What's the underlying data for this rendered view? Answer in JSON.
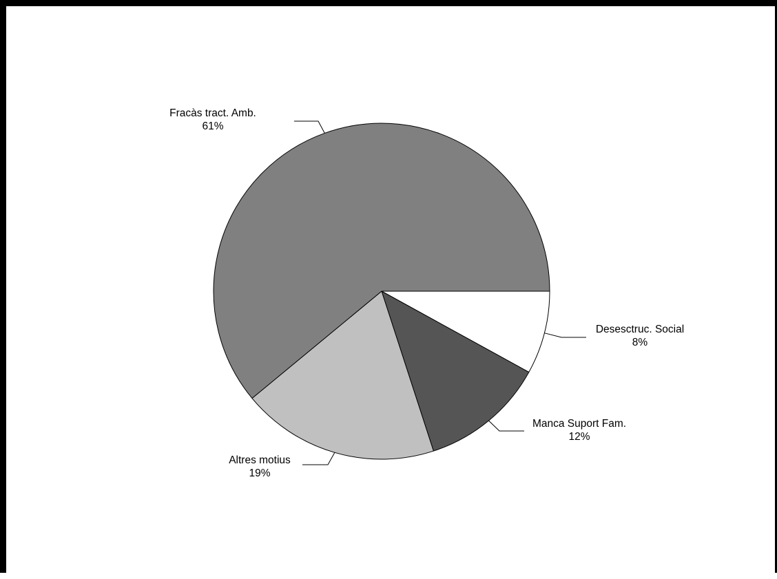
{
  "chart_data": {
    "type": "pie",
    "title": "",
    "slices": [
      {
        "label": "Desesctruc. Social",
        "value": 8,
        "value_label": "8%",
        "color": "#ffffff"
      },
      {
        "label": "Manca Suport Fam.",
        "value": 12,
        "value_label": "12%",
        "color": "#555555"
      },
      {
        "label": "Altres motius",
        "value": 19,
        "value_label": "19%",
        "color": "#c0c0c0"
      },
      {
        "label": "Fracàs tract. Amb.",
        "value": 61,
        "value_label": "61%",
        "color": "#808080"
      }
    ],
    "start_angle": "3 o'clock",
    "direction": "clockwise",
    "legend": "none",
    "labels": "outside with leader lines"
  }
}
